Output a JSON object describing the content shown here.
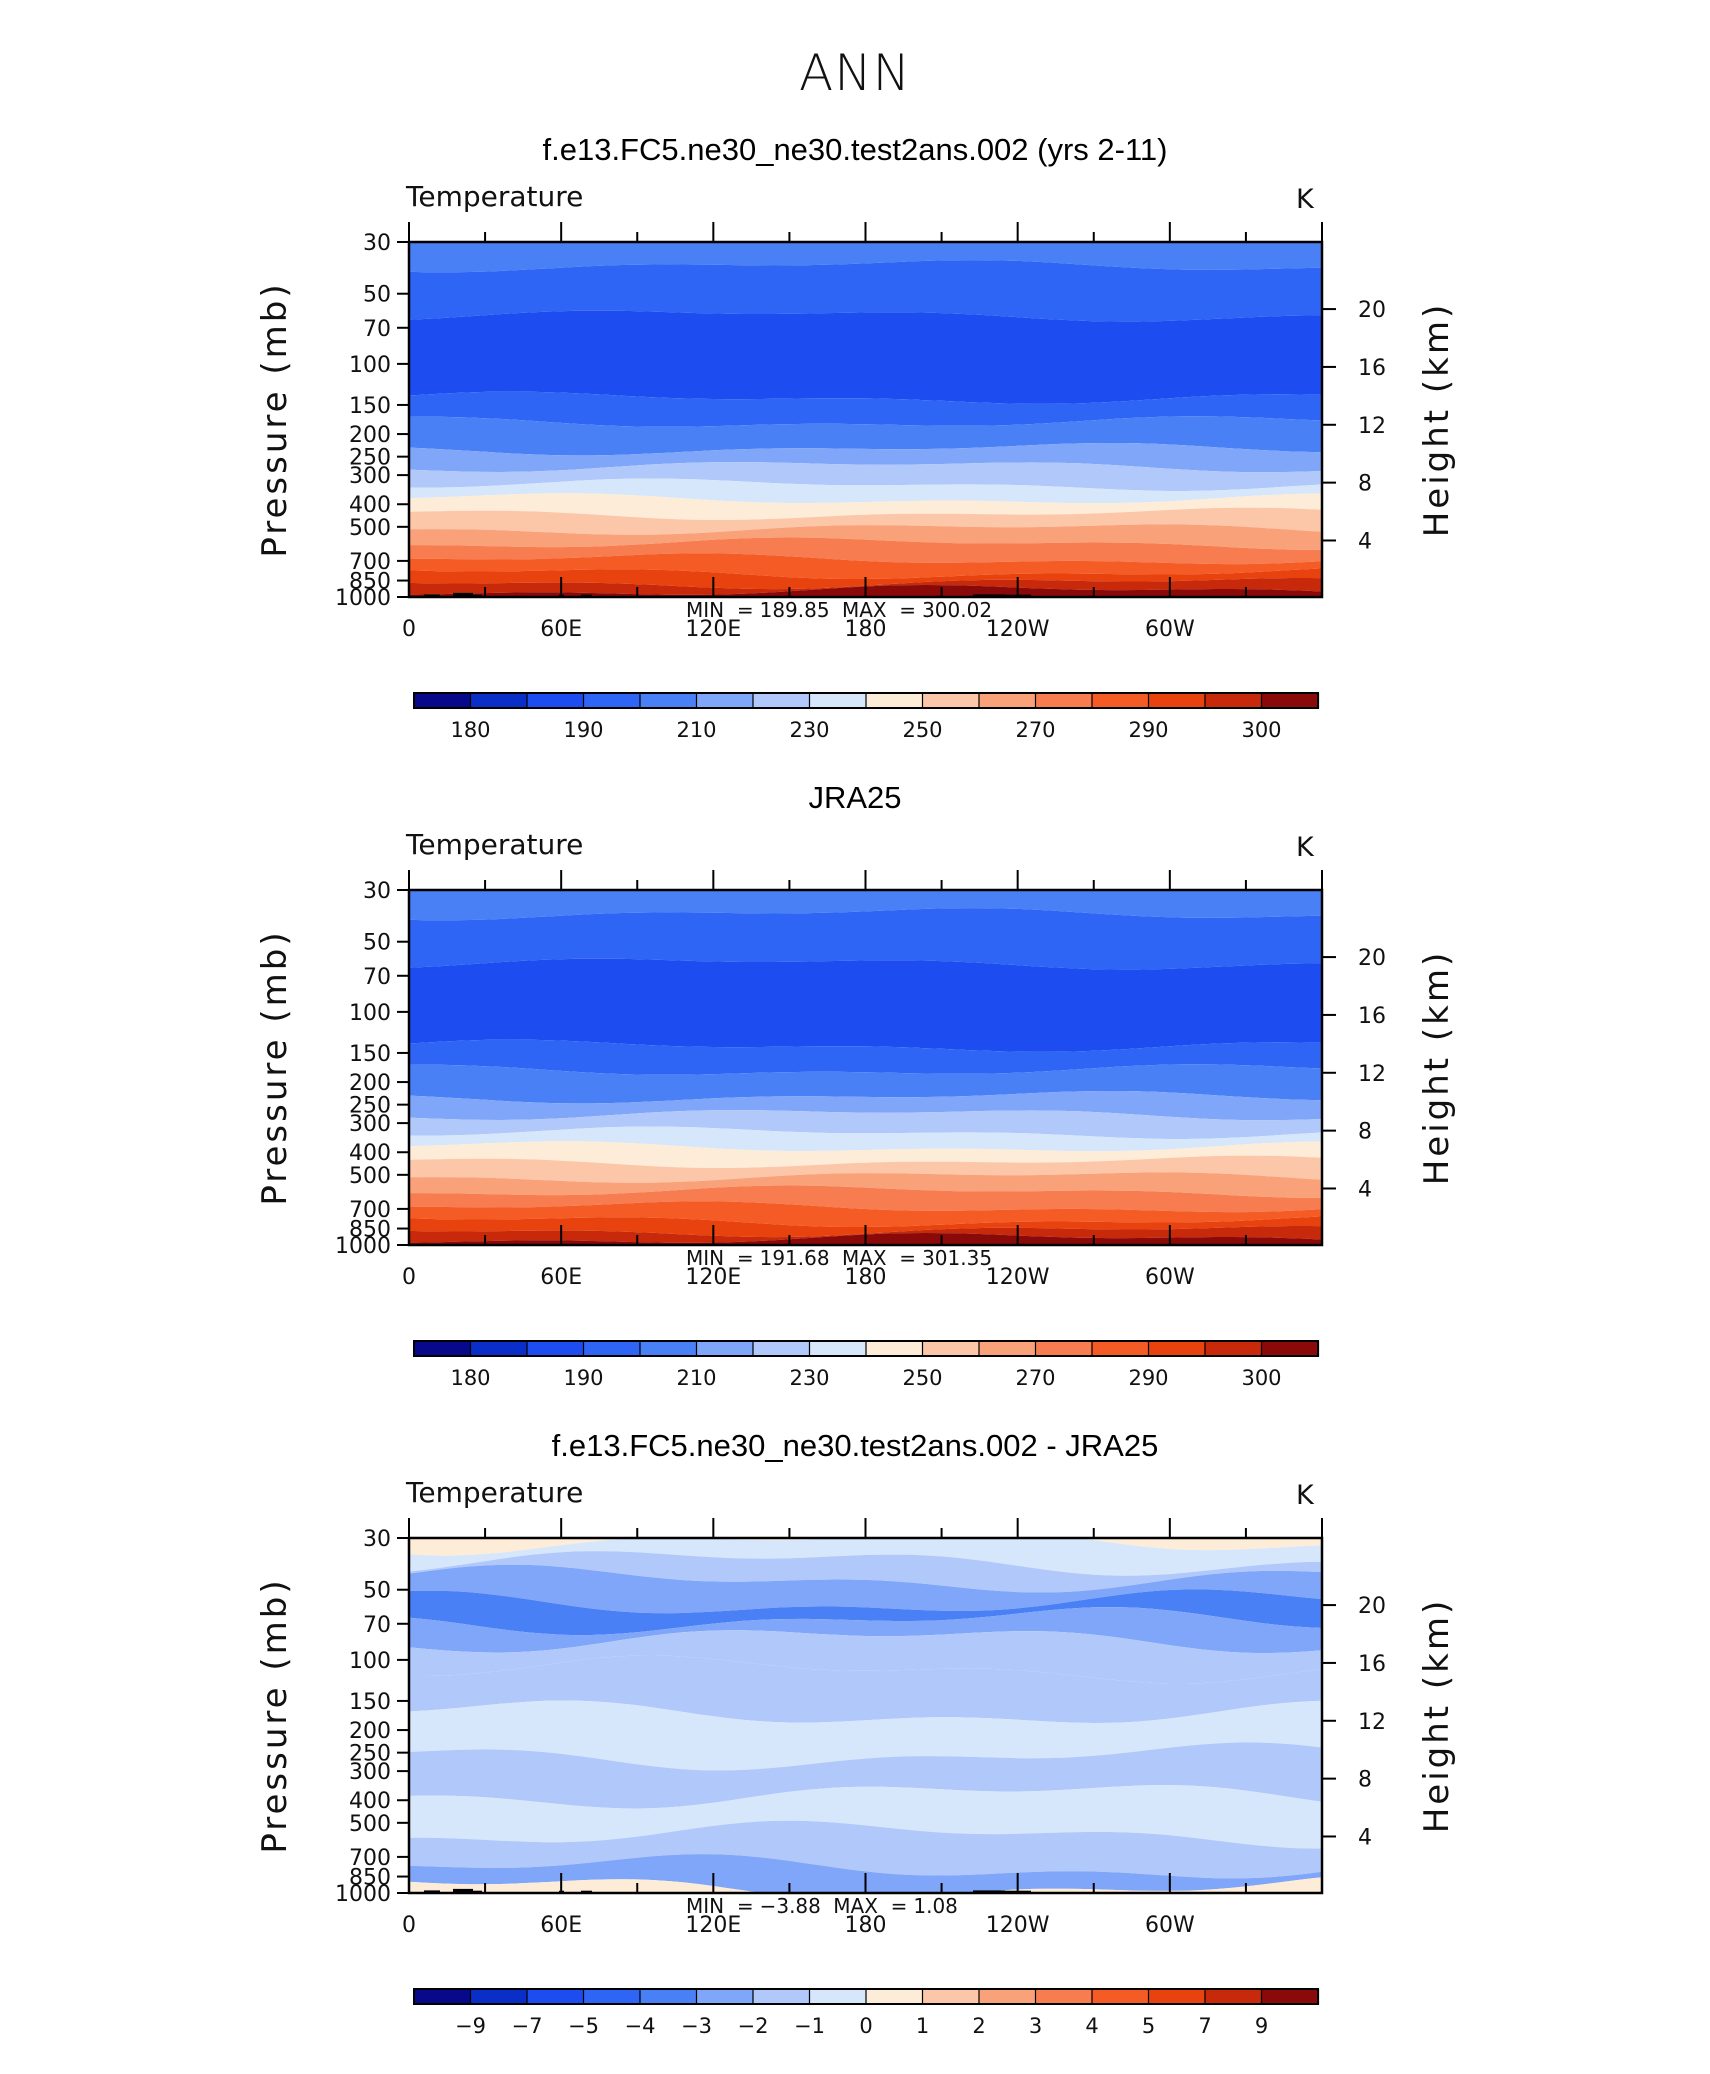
{
  "title": "ANN",
  "colors": {
    "palette": [
      "#08088a",
      "#0a2fc9",
      "#1d4cf0",
      "#2f65f5",
      "#4a80f5",
      "#7fa6f8",
      "#b1c9fa",
      "#d6e6fb",
      "#fdecd8",
      "#fcc6a8",
      "#f9a27a",
      "#f77c4f",
      "#f45b25",
      "#e8430f",
      "#c8290a",
      "#8a0a0a"
    ],
    "terrain": "#000000"
  },
  "panels": [
    {
      "id": "model",
      "title": "f.e13.FC5.ne30_ne30.test2ans.002 (yrs 2-11)",
      "var_label": "Temperature",
      "unit": "K",
      "min_label": "MIN  =",
      "min_value": "189.85",
      "max_label": "MAX  =",
      "max_value": "300.02",
      "colorbar_labels": [
        "180",
        "190",
        "210",
        "230",
        "250",
        "270",
        "290",
        "300"
      ]
    },
    {
      "id": "obs",
      "title": "JRA25",
      "var_label": "Temperature",
      "unit": "K",
      "min_label": "MIN  =",
      "min_value": "191.68",
      "max_label": "MAX  =",
      "max_value": "301.35",
      "colorbar_labels": [
        "180",
        "190",
        "210",
        "230",
        "250",
        "270",
        "290",
        "300"
      ]
    },
    {
      "id": "diff",
      "title": "f.e13.FC5.ne30_ne30.test2ans.002 - JRA25",
      "var_label": "Temperature",
      "unit": "K",
      "min_label": "MIN  =",
      "min_value": "−3.88",
      "max_label": "MAX  =",
      "max_value": "1.08",
      "colorbar_labels": [
        "−9",
        "−7",
        "−5",
        "−4",
        "−3",
        "−2",
        "−1",
        "0",
        "1",
        "2",
        "3",
        "4",
        "5",
        "7",
        "9"
      ]
    }
  ],
  "chart_data": [
    {
      "type": "heatmap",
      "title": "f.e13.FC5.ne30_ne30.test2ans.002 (yrs 2-11)",
      "ylabel": "Pressure (mb)",
      "y2label": "Height (km)",
      "x_ticks": [
        "0",
        "60E",
        "120E",
        "180",
        "120W",
        "60W"
      ],
      "x_tick_lon": [
        0,
        60,
        120,
        180,
        240,
        300
      ],
      "xlim_lon": [
        0,
        360
      ],
      "y_ticks": [
        "30",
        "50",
        "70",
        "100",
        "150",
        "200",
        "250",
        "300",
        "400",
        "500",
        "700",
        "850",
        "1000"
      ],
      "y_tick_p": [
        30,
        50,
        70,
        100,
        150,
        200,
        250,
        300,
        400,
        500,
        700,
        850,
        1000
      ],
      "ylim_p": [
        30,
        1000
      ],
      "y_scale": "log",
      "y2_ticks": [
        "20",
        "16",
        "12",
        "8",
        "4"
      ],
      "y2_tick_km": [
        20,
        16,
        12,
        8,
        4
      ],
      "contour_levels": [
        180,
        185,
        190,
        200,
        210,
        220,
        230,
        240,
        250,
        260,
        270,
        280,
        290,
        295,
        300
      ],
      "band_boundaries_p": [
        38,
        62,
        140,
        178,
        232,
        275,
        330,
        380,
        440,
        510,
        590,
        690,
        790,
        870,
        940
      ],
      "band_colors": [
        4,
        3,
        2,
        3,
        4,
        5,
        6,
        7,
        8,
        9,
        10,
        11,
        12,
        13,
        14,
        15
      ],
      "min": 189.85,
      "max": 300.02
    },
    {
      "type": "heatmap",
      "title": "JRA25",
      "ylabel": "Pressure (mb)",
      "y2label": "Height (km)",
      "x_ticks": [
        "0",
        "60E",
        "120E",
        "180",
        "120W",
        "60W"
      ],
      "x_tick_lon": [
        0,
        60,
        120,
        180,
        240,
        300
      ],
      "xlim_lon": [
        0,
        360
      ],
      "y_ticks": [
        "30",
        "50",
        "70",
        "100",
        "150",
        "200",
        "250",
        "300",
        "400",
        "500",
        "700",
        "850",
        "1000"
      ],
      "y_tick_p": [
        30,
        50,
        70,
        100,
        150,
        200,
        250,
        300,
        400,
        500,
        700,
        850,
        1000
      ],
      "ylim_p": [
        30,
        1000
      ],
      "y_scale": "log",
      "y2_ticks": [
        "20",
        "16",
        "12",
        "8",
        "4"
      ],
      "y2_tick_km": [
        20,
        16,
        12,
        8,
        4
      ],
      "contour_levels": [
        180,
        185,
        190,
        200,
        210,
        220,
        230,
        240,
        250,
        260,
        270,
        280,
        290,
        295,
        300
      ],
      "band_boundaries_p": [
        38,
        62,
        140,
        178,
        232,
        275,
        330,
        380,
        440,
        510,
        590,
        690,
        790,
        870,
        940
      ],
      "band_colors": [
        4,
        3,
        2,
        3,
        4,
        5,
        6,
        7,
        8,
        9,
        10,
        11,
        12,
        13,
        14,
        15
      ],
      "min": 191.68,
      "max": 301.35
    },
    {
      "type": "heatmap",
      "title": "f.e13.FC5.ne30_ne30.test2ans.002 - JRA25",
      "ylabel": "Pressure (mb)",
      "y2label": "Height (km)",
      "x_ticks": [
        "0",
        "60E",
        "120E",
        "180",
        "120W",
        "60W"
      ],
      "x_tick_lon": [
        0,
        60,
        120,
        180,
        240,
        300
      ],
      "xlim_lon": [
        0,
        360
      ],
      "y_ticks": [
        "30",
        "50",
        "70",
        "100",
        "150",
        "200",
        "250",
        "300",
        "400",
        "500",
        "700",
        "850",
        "1000"
      ],
      "y_tick_p": [
        30,
        50,
        70,
        100,
        150,
        200,
        250,
        300,
        400,
        500,
        700,
        850,
        1000
      ],
      "ylim_p": [
        30,
        1000
      ],
      "y_scale": "log",
      "y2_ticks": [
        "20",
        "16",
        "12",
        "8",
        "4"
      ],
      "y2_tick_km": [
        20,
        16,
        12,
        8,
        4
      ],
      "contour_levels": [
        -9,
        -7,
        -5,
        -4,
        -3,
        -2,
        -1,
        0,
        1,
        2,
        3,
        4,
        5,
        7,
        9
      ],
      "band_boundaries_p": [
        31,
        38,
        45,
        57,
        68,
        82,
        110,
        170,
        260,
        380,
        560,
        780,
        950
      ],
      "band_colors": [
        8,
        7,
        6,
        5,
        4,
        5,
        6,
        6,
        7,
        6,
        7,
        6,
        5,
        8
      ],
      "min": -3.88,
      "max": 1.08
    }
  ]
}
